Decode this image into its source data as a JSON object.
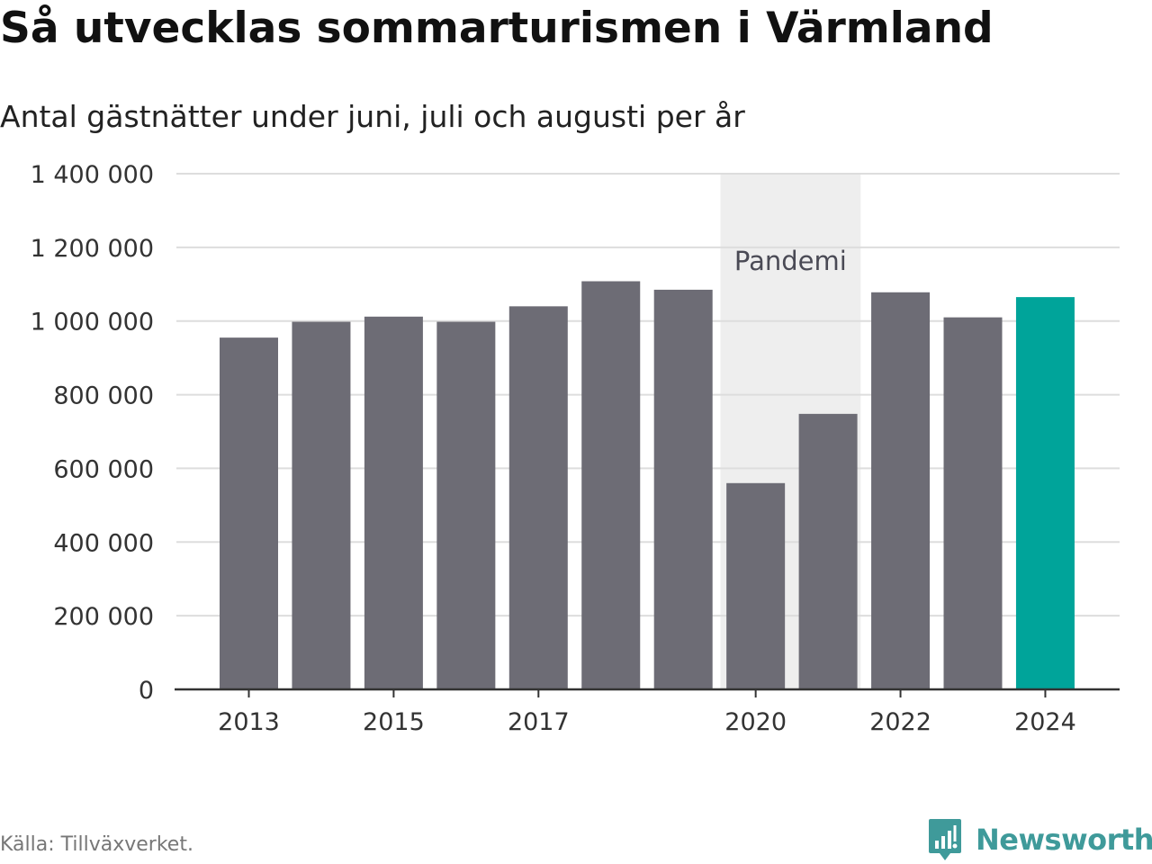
{
  "header": {
    "title": "Så utvecklas sommarturismen i Värmland",
    "subtitle": "Antal gästnätter under juni, juli och augusti per år"
  },
  "footer": {
    "source": "Källa: Tillväxverket.",
    "brand": "Newsworthy"
  },
  "colors": {
    "bar": "#6d6c75",
    "highlight": "#00a49a",
    "band": "#eeeeee",
    "grid": "#dddddd",
    "axis": "#333333",
    "brand": "#3f9a9a"
  },
  "chart_data": {
    "type": "bar",
    "categories": [
      "2013",
      "2014",
      "2015",
      "2016",
      "2017",
      "2018",
      "2019",
      "2020",
      "2021",
      "2022",
      "2023",
      "2024"
    ],
    "values": [
      955000,
      998000,
      1012000,
      998000,
      1040000,
      1108000,
      1085000,
      560000,
      748000,
      1078000,
      1010000,
      1065000
    ],
    "highlight": [
      "2024"
    ],
    "xlabel": "",
    "ylabel": "",
    "ylim": [
      0,
      1400000
    ],
    "yticks": [
      0,
      200000,
      400000,
      600000,
      800000,
      1000000,
      1200000,
      1400000
    ],
    "ytick_labels": [
      "0",
      "200 000",
      "400 000",
      "600 000",
      "800 000",
      "1 000 000",
      "1 200 000",
      "1 400 000"
    ],
    "xtick_labels": [
      "2013",
      "2015",
      "2017",
      "2020",
      "2022",
      "2024"
    ],
    "grid": true,
    "legend": "none",
    "annotations": [
      {
        "label": "Pandemi",
        "x_start": "2020",
        "x_end": "2021"
      }
    ]
  }
}
